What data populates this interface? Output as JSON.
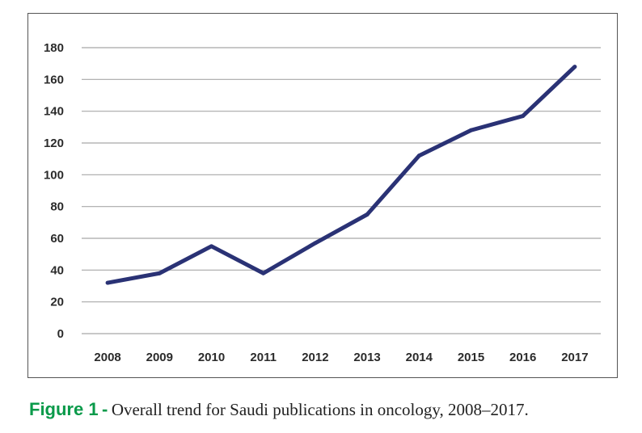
{
  "chart_data": {
    "type": "line",
    "title": "",
    "xlabel": "",
    "ylabel": "",
    "categories": [
      "2008",
      "2009",
      "2010",
      "2011",
      "2012",
      "2013",
      "2014",
      "2015",
      "2016",
      "2017"
    ],
    "series": [
      {
        "name": "Saudi publications in oncology",
        "values": [
          32,
          38,
          55,
          38,
          57,
          75,
          112,
          128,
          137,
          168
        ]
      }
    ],
    "ylim": [
      0,
      180
    ],
    "yticks": [
      "0",
      "20",
      "40",
      "60",
      "80",
      "100",
      "120",
      "140",
      "160",
      "180"
    ],
    "grid": true,
    "line_color": "#2a3275"
  },
  "caption": {
    "label": "Figure 1",
    "separator": "-",
    "text": "Overall trend for Saudi publications in oncology, 2008–2017."
  }
}
